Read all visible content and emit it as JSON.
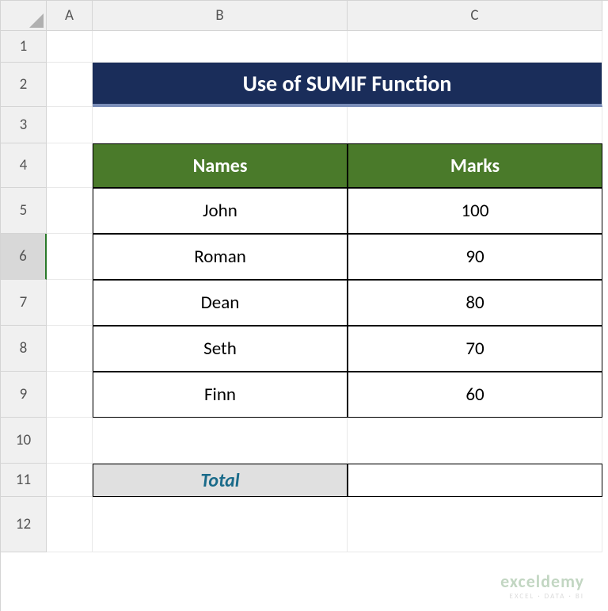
{
  "columns": [
    "A",
    "B",
    "C"
  ],
  "rows": [
    "1",
    "2",
    "3",
    "4",
    "5",
    "6",
    "7",
    "8",
    "9",
    "10",
    "11",
    "12"
  ],
  "selected_row": "6",
  "title": "Use of SUMIF Function",
  "headers": {
    "names": "Names",
    "marks": "Marks"
  },
  "data": [
    {
      "name": "John",
      "mark": "100"
    },
    {
      "name": "Roman",
      "mark": "90"
    },
    {
      "name": "Dean",
      "mark": "80"
    },
    {
      "name": "Seth",
      "mark": "70"
    },
    {
      "name": "Finn",
      "mark": "60"
    }
  ],
  "total_label": "Total",
  "total_value": "",
  "colors": {
    "title_bg": "#1a2d5a",
    "title_underline": "#7a8db8",
    "header_bg": "#4a7a2a",
    "total_bg": "#e0e0e0",
    "total_text": "#1a6b8a",
    "grid_border": "#d4d4d4",
    "cell_border": "#000000"
  },
  "watermark": {
    "brand": "exceldemy",
    "tagline": "EXCEL · DATA · BI"
  }
}
